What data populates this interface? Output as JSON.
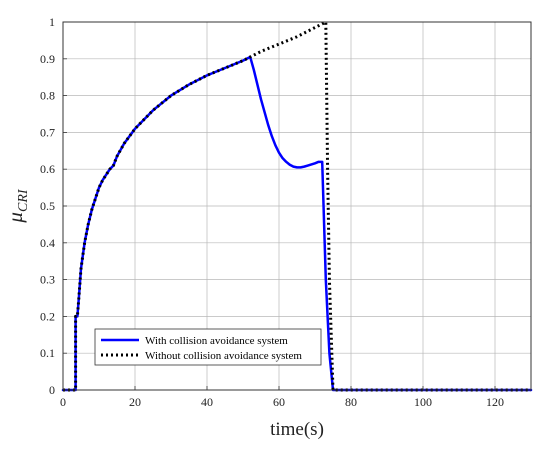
{
  "chart_data": {
    "type": "line",
    "xlabel": "time(s)",
    "ylabel": {
      "base": "μ",
      "sub": "CRI"
    },
    "xlim": [
      0,
      130
    ],
    "ylim": [
      0,
      1
    ],
    "xticks": [
      0,
      20,
      40,
      60,
      80,
      100,
      120
    ],
    "yticks": [
      0,
      0.1,
      0.2,
      0.3,
      0.4,
      0.5,
      0.6,
      0.7,
      0.8,
      0.9,
      1
    ],
    "grid": true,
    "legend": {
      "position": "bottom-left"
    },
    "series": [
      {
        "name": "With collision avoidance system",
        "color": "#0000ff",
        "style": "solid",
        "x": [
          0,
          3.5,
          3.5,
          4,
          4.4,
          5,
          6,
          7,
          8,
          9,
          10,
          11,
          12,
          13,
          14,
          15,
          17,
          20,
          25,
          30,
          35,
          40,
          45,
          50,
          52,
          53,
          54,
          55,
          56,
          57,
          58,
          59,
          60,
          61,
          62,
          63,
          64,
          65,
          66,
          67,
          68,
          69,
          70,
          71,
          72,
          73,
          74,
          75,
          76,
          80,
          100,
          130
        ],
        "y": [
          0,
          0,
          0.2,
          0.2,
          0.25,
          0.33,
          0.4,
          0.45,
          0.49,
          0.52,
          0.55,
          0.57,
          0.585,
          0.6,
          0.61,
          0.635,
          0.67,
          0.71,
          0.76,
          0.8,
          0.83,
          0.855,
          0.875,
          0.895,
          0.905,
          0.87,
          0.83,
          0.79,
          0.755,
          0.72,
          0.69,
          0.665,
          0.645,
          0.63,
          0.62,
          0.612,
          0.607,
          0.605,
          0.605,
          0.607,
          0.61,
          0.613,
          0.616,
          0.62,
          0.62,
          0.3,
          0.1,
          0,
          0,
          0,
          0,
          0
        ]
      },
      {
        "name": "Without collision avoidance system",
        "color": "#000000",
        "style": "dotted",
        "x": [
          0,
          3.5,
          3.5,
          4,
          4.4,
          5,
          6,
          7,
          8,
          9,
          10,
          11,
          12,
          13,
          14,
          15,
          17,
          20,
          25,
          30,
          35,
          40,
          45,
          50,
          52,
          55,
          60,
          65,
          70,
          73,
          73.5,
          74,
          75,
          76,
          80,
          100,
          130
        ],
        "y": [
          0,
          0,
          0.2,
          0.2,
          0.25,
          0.33,
          0.4,
          0.45,
          0.49,
          0.52,
          0.55,
          0.57,
          0.585,
          0.6,
          0.61,
          0.635,
          0.67,
          0.71,
          0.76,
          0.8,
          0.83,
          0.855,
          0.875,
          0.895,
          0.905,
          0.92,
          0.94,
          0.96,
          0.985,
          1.0,
          0.6,
          0.3,
          0,
          0,
          0,
          0,
          0
        ]
      }
    ]
  }
}
